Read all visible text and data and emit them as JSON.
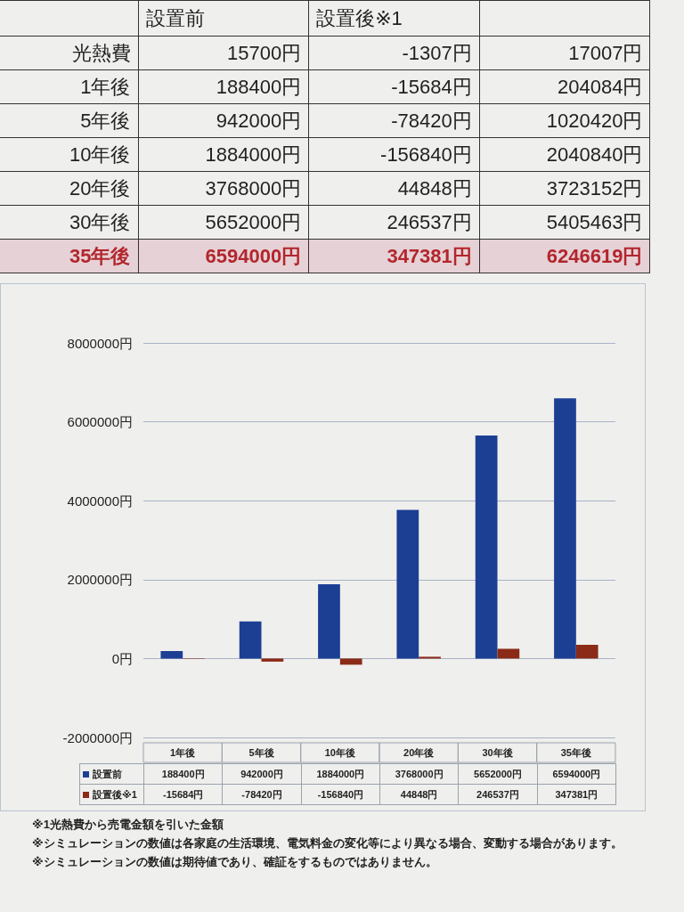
{
  "chart_data": [
    {
      "type": "other",
      "categories": [
        "設置前",
        "設置後※1",
        null
      ],
      "y_categories": [
        "光熱費",
        "1年後",
        "5年後",
        "10年後",
        "20年後",
        "30年後",
        "35年後"
      ],
      "cell_labels": [
        [
          "15700円",
          "-1307円",
          "17007円"
        ],
        [
          "188400円",
          "-15684円",
          "204084円"
        ],
        [
          "942000円",
          "-78420円",
          "1020420円"
        ],
        [
          "1884000円",
          "-156840円",
          "2040840円"
        ],
        [
          "3768000円",
          "44848円",
          "3723152円"
        ],
        [
          "5652000円",
          "246537円",
          "5405463円"
        ],
        [
          "6594000円",
          "347381円",
          "6246619円"
        ]
      ]
    },
    {
      "type": "bar",
      "categories": [
        "1年後",
        "5年後",
        "10年後",
        "20年後",
        "30年後",
        "35年後"
      ],
      "series": [
        {
          "name": "設置前",
          "color": "#1c3f94",
          "values": [
            188400,
            942000,
            1884000,
            3768000,
            5652000,
            6594000
          ],
          "value_labels": [
            "188400円",
            "942000円",
            "1884000円",
            "3768000円",
            "5652000円",
            "6594000円"
          ]
        },
        {
          "name": "設置後※1",
          "color": "#8b2a17",
          "values": [
            -15684,
            -78420,
            -156840,
            44848,
            246537,
            347381
          ],
          "value_labels": [
            "-15684円",
            "-78420円",
            "-156840円",
            "44848円",
            "246537円",
            "347381円"
          ]
        }
      ],
      "ylim": [
        -2000000,
        8000000
      ],
      "yticks": [
        {
          "value": -2000000,
          "label": "-2000000円"
        },
        {
          "value": 0,
          "label": "0円"
        },
        {
          "value": 2000000,
          "label": "2000000円"
        },
        {
          "value": 4000000,
          "label": "4000000円"
        },
        {
          "value": 6000000,
          "label": "6000000円"
        },
        {
          "value": 8000000,
          "label": "8000000円"
        }
      ],
      "grid": "y",
      "legend": "bottom",
      "annotations": [
        "※1光熱費から売電金額を引いた金額",
        "※シミュレーションの数値は各家庭の生活環境、電気料金の変化等により異なる場合、変動する場合があります。",
        "※シミュレーションの数値は期待値であり、確証をするものではありません。"
      ]
    }
  ]
}
